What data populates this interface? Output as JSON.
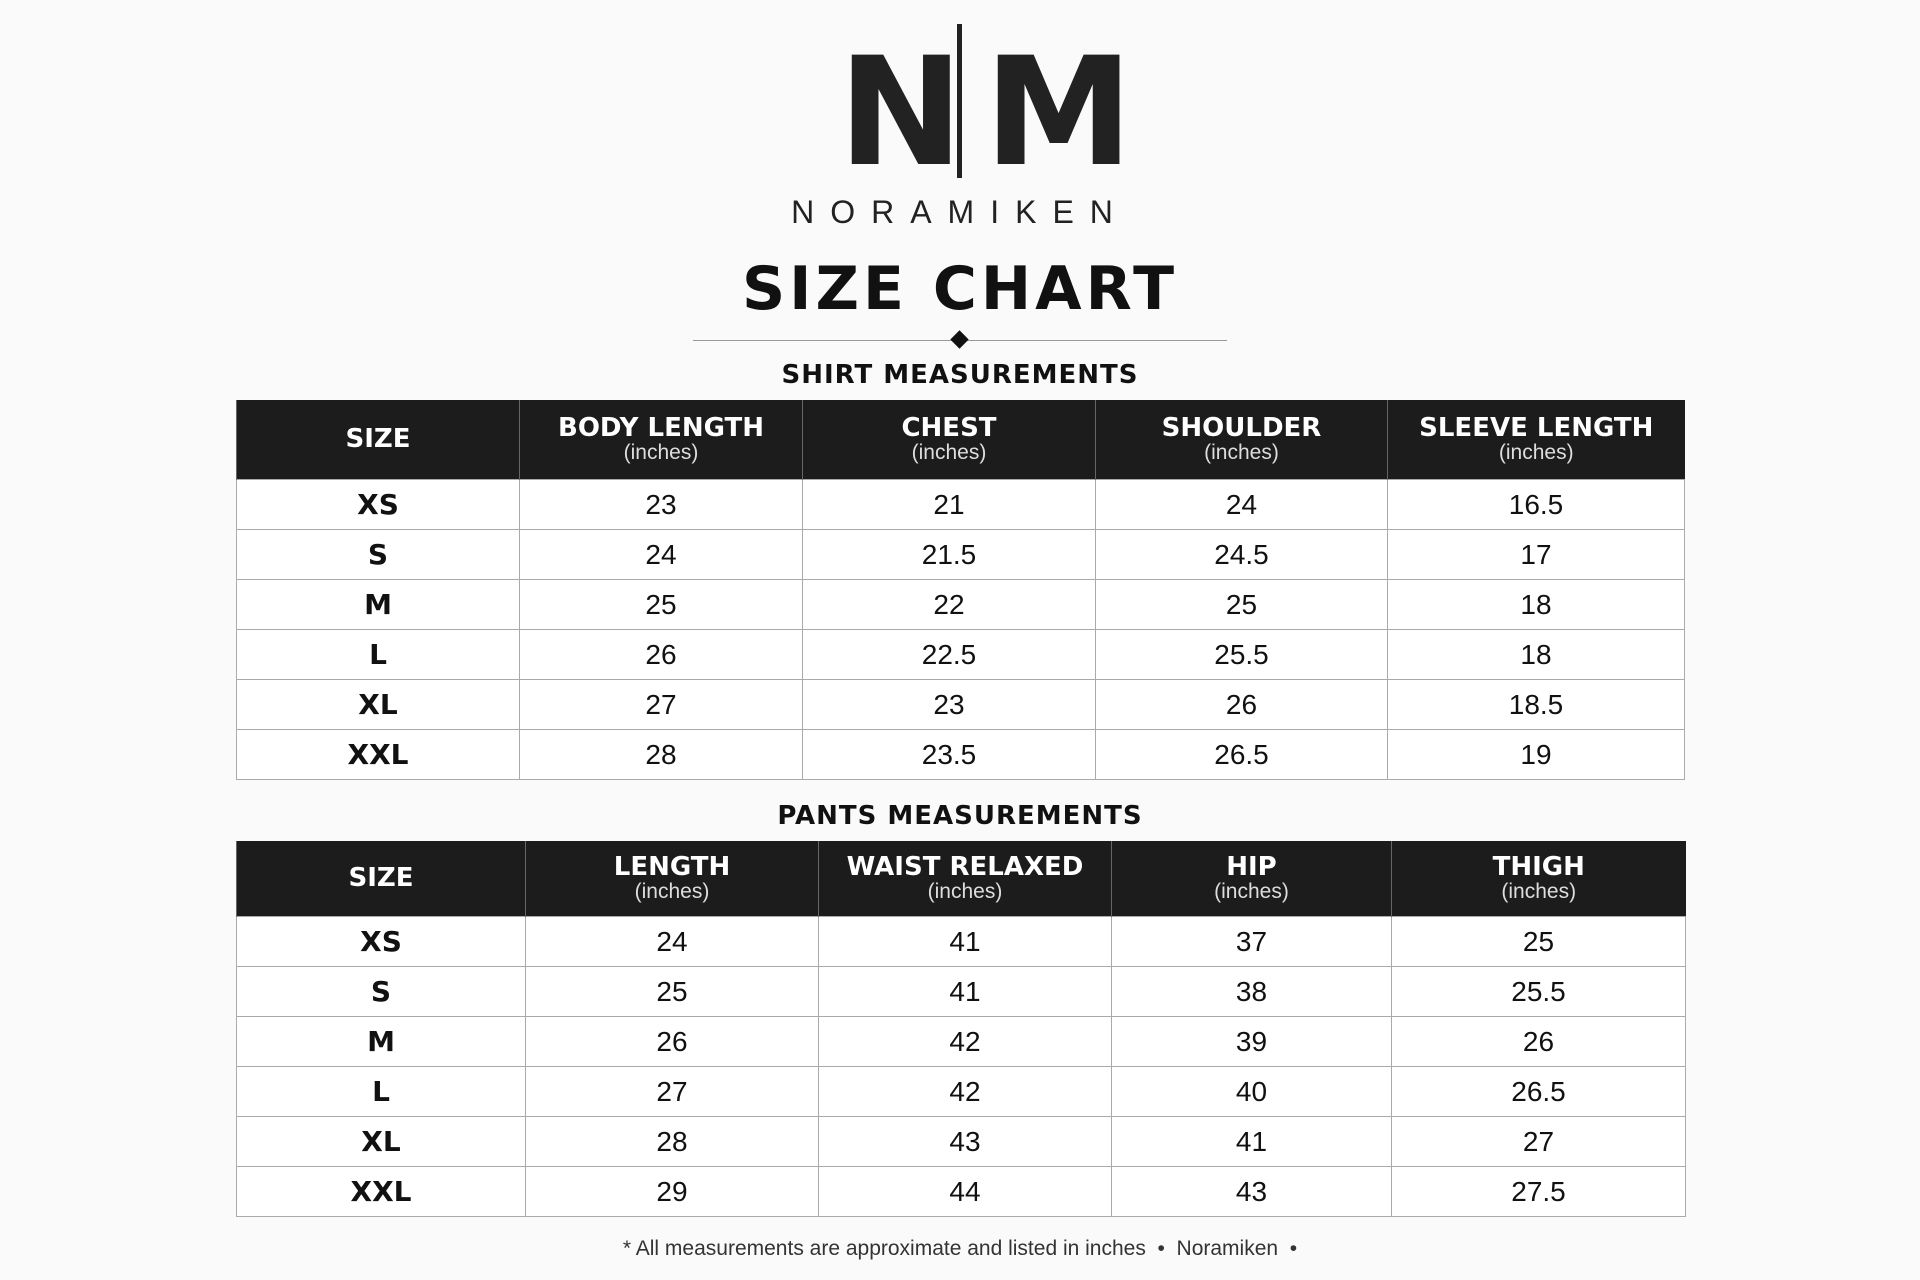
{
  "logo": {
    "left": "N",
    "right": "M"
  },
  "brand": "NORAMIKEN",
  "title": "SIZE CHART",
  "shirt": {
    "heading": "SHIRT MEASUREMENTS",
    "columns": [
      {
        "label": "SIZE"
      },
      {
        "label": "BODY LENGTH",
        "unit": "(inches)"
      },
      {
        "label": "CHEST",
        "unit": "(inches)"
      },
      {
        "label": "SHOULDER",
        "unit": "(inches)"
      },
      {
        "label": "SLEEVE LENGTH",
        "unit": "(inches)"
      }
    ],
    "rows": [
      [
        "XS",
        "23",
        "21",
        "24",
        "16.5"
      ],
      [
        "S",
        "24",
        "21.5",
        "24.5",
        "17"
      ],
      [
        "M",
        "25",
        "22",
        "25",
        "18"
      ],
      [
        "L",
        "26",
        "22.5",
        "25.5",
        "18"
      ],
      [
        "XL",
        "27",
        "23",
        "26",
        "18.5"
      ],
      [
        "XXL",
        "28",
        "23.5",
        "26.5",
        "19"
      ]
    ]
  },
  "pants": {
    "heading": "PANTS MEASUREMENTS",
    "columns": [
      {
        "label": "SIZE"
      },
      {
        "label": "LENGTH",
        "unit": "(inches)"
      },
      {
        "label": "WAIST RELAXED",
        "unit": "(inches)"
      },
      {
        "label": "HIP",
        "unit": "(inches)"
      },
      {
        "label": "THIGH",
        "unit": "(inches)"
      }
    ],
    "rows": [
      [
        "XS",
        "24",
        "41",
        "37",
        "25"
      ],
      [
        "S",
        "25",
        "41",
        "38",
        "25.5"
      ],
      [
        "M",
        "26",
        "42",
        "39",
        "26"
      ],
      [
        "L",
        "27",
        "42",
        "40",
        "26.5"
      ],
      [
        "XL",
        "28",
        "43",
        "41",
        "27"
      ],
      [
        "XXL",
        "29",
        "44",
        "43",
        "27.5"
      ]
    ]
  },
  "footer": "* All measurements are approximate and listed in inches  •  Noramiken  •"
}
